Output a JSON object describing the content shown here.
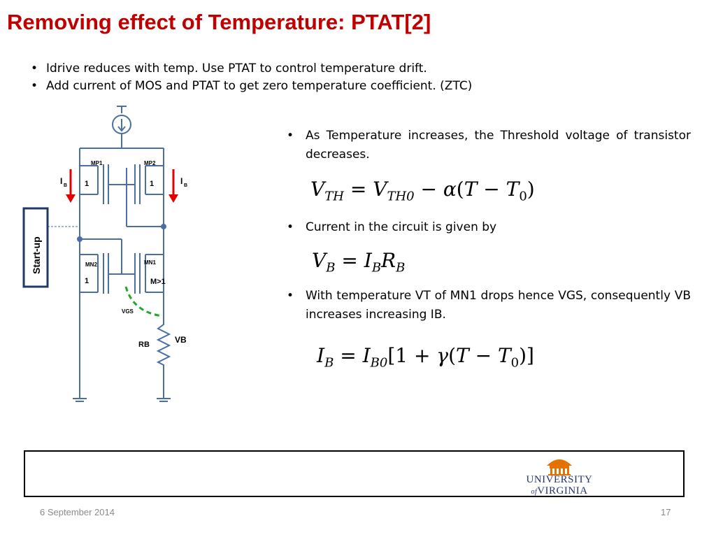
{
  "slide": {
    "title": "Removing effect of Temperature: PTAT[2]",
    "bullets_top": [
      "Idrive reduces with temp. Use PTAT to control temperature drift.",
      "Add current of MOS and PTAT to get zero temperature coefficient. (ZTC)"
    ],
    "bullets_right": [
      "As Temperature increases, the Threshold voltage of transistor decreases.",
      "Current in the circuit is given by",
      "With temperature VT of MN1 drops hence VGS, consequently VB increases increasing IB."
    ],
    "equations": {
      "vth": "V_TH = V_TH0 − α(T − T_0)",
      "vb": "V_B = I_B R_B",
      "ib": "I_B = I_B0[1 + γ(T − T_0)]"
    }
  },
  "circuit": {
    "startup_label": "Start-up",
    "mp1": "MP1",
    "mp2": "MP2",
    "mn1": "MN1",
    "mn2": "MN2",
    "ratio_one_left": "1",
    "ratio_one_right": "1",
    "ratio_one_mn2": "1",
    "ratio_m": "M>1",
    "ib_left": "I",
    "ib_left_sub": "B",
    "ib_right": "I",
    "ib_right_sub": "B",
    "vgs": "VGS",
    "rb": "RB",
    "vb": "VB",
    "colors": {
      "wire": "#4a6fa5",
      "arrow": "#e00000",
      "vgs": "#1fa82f"
    }
  },
  "footer": {
    "date": "6 September 2014",
    "page": "17",
    "logo_line1": "UNIVERSITY",
    "logo_line2": "VIRGINIA",
    "logo_of": "of"
  },
  "theme": {
    "title_color": "#c00000",
    "logo_color": "#23356b"
  }
}
